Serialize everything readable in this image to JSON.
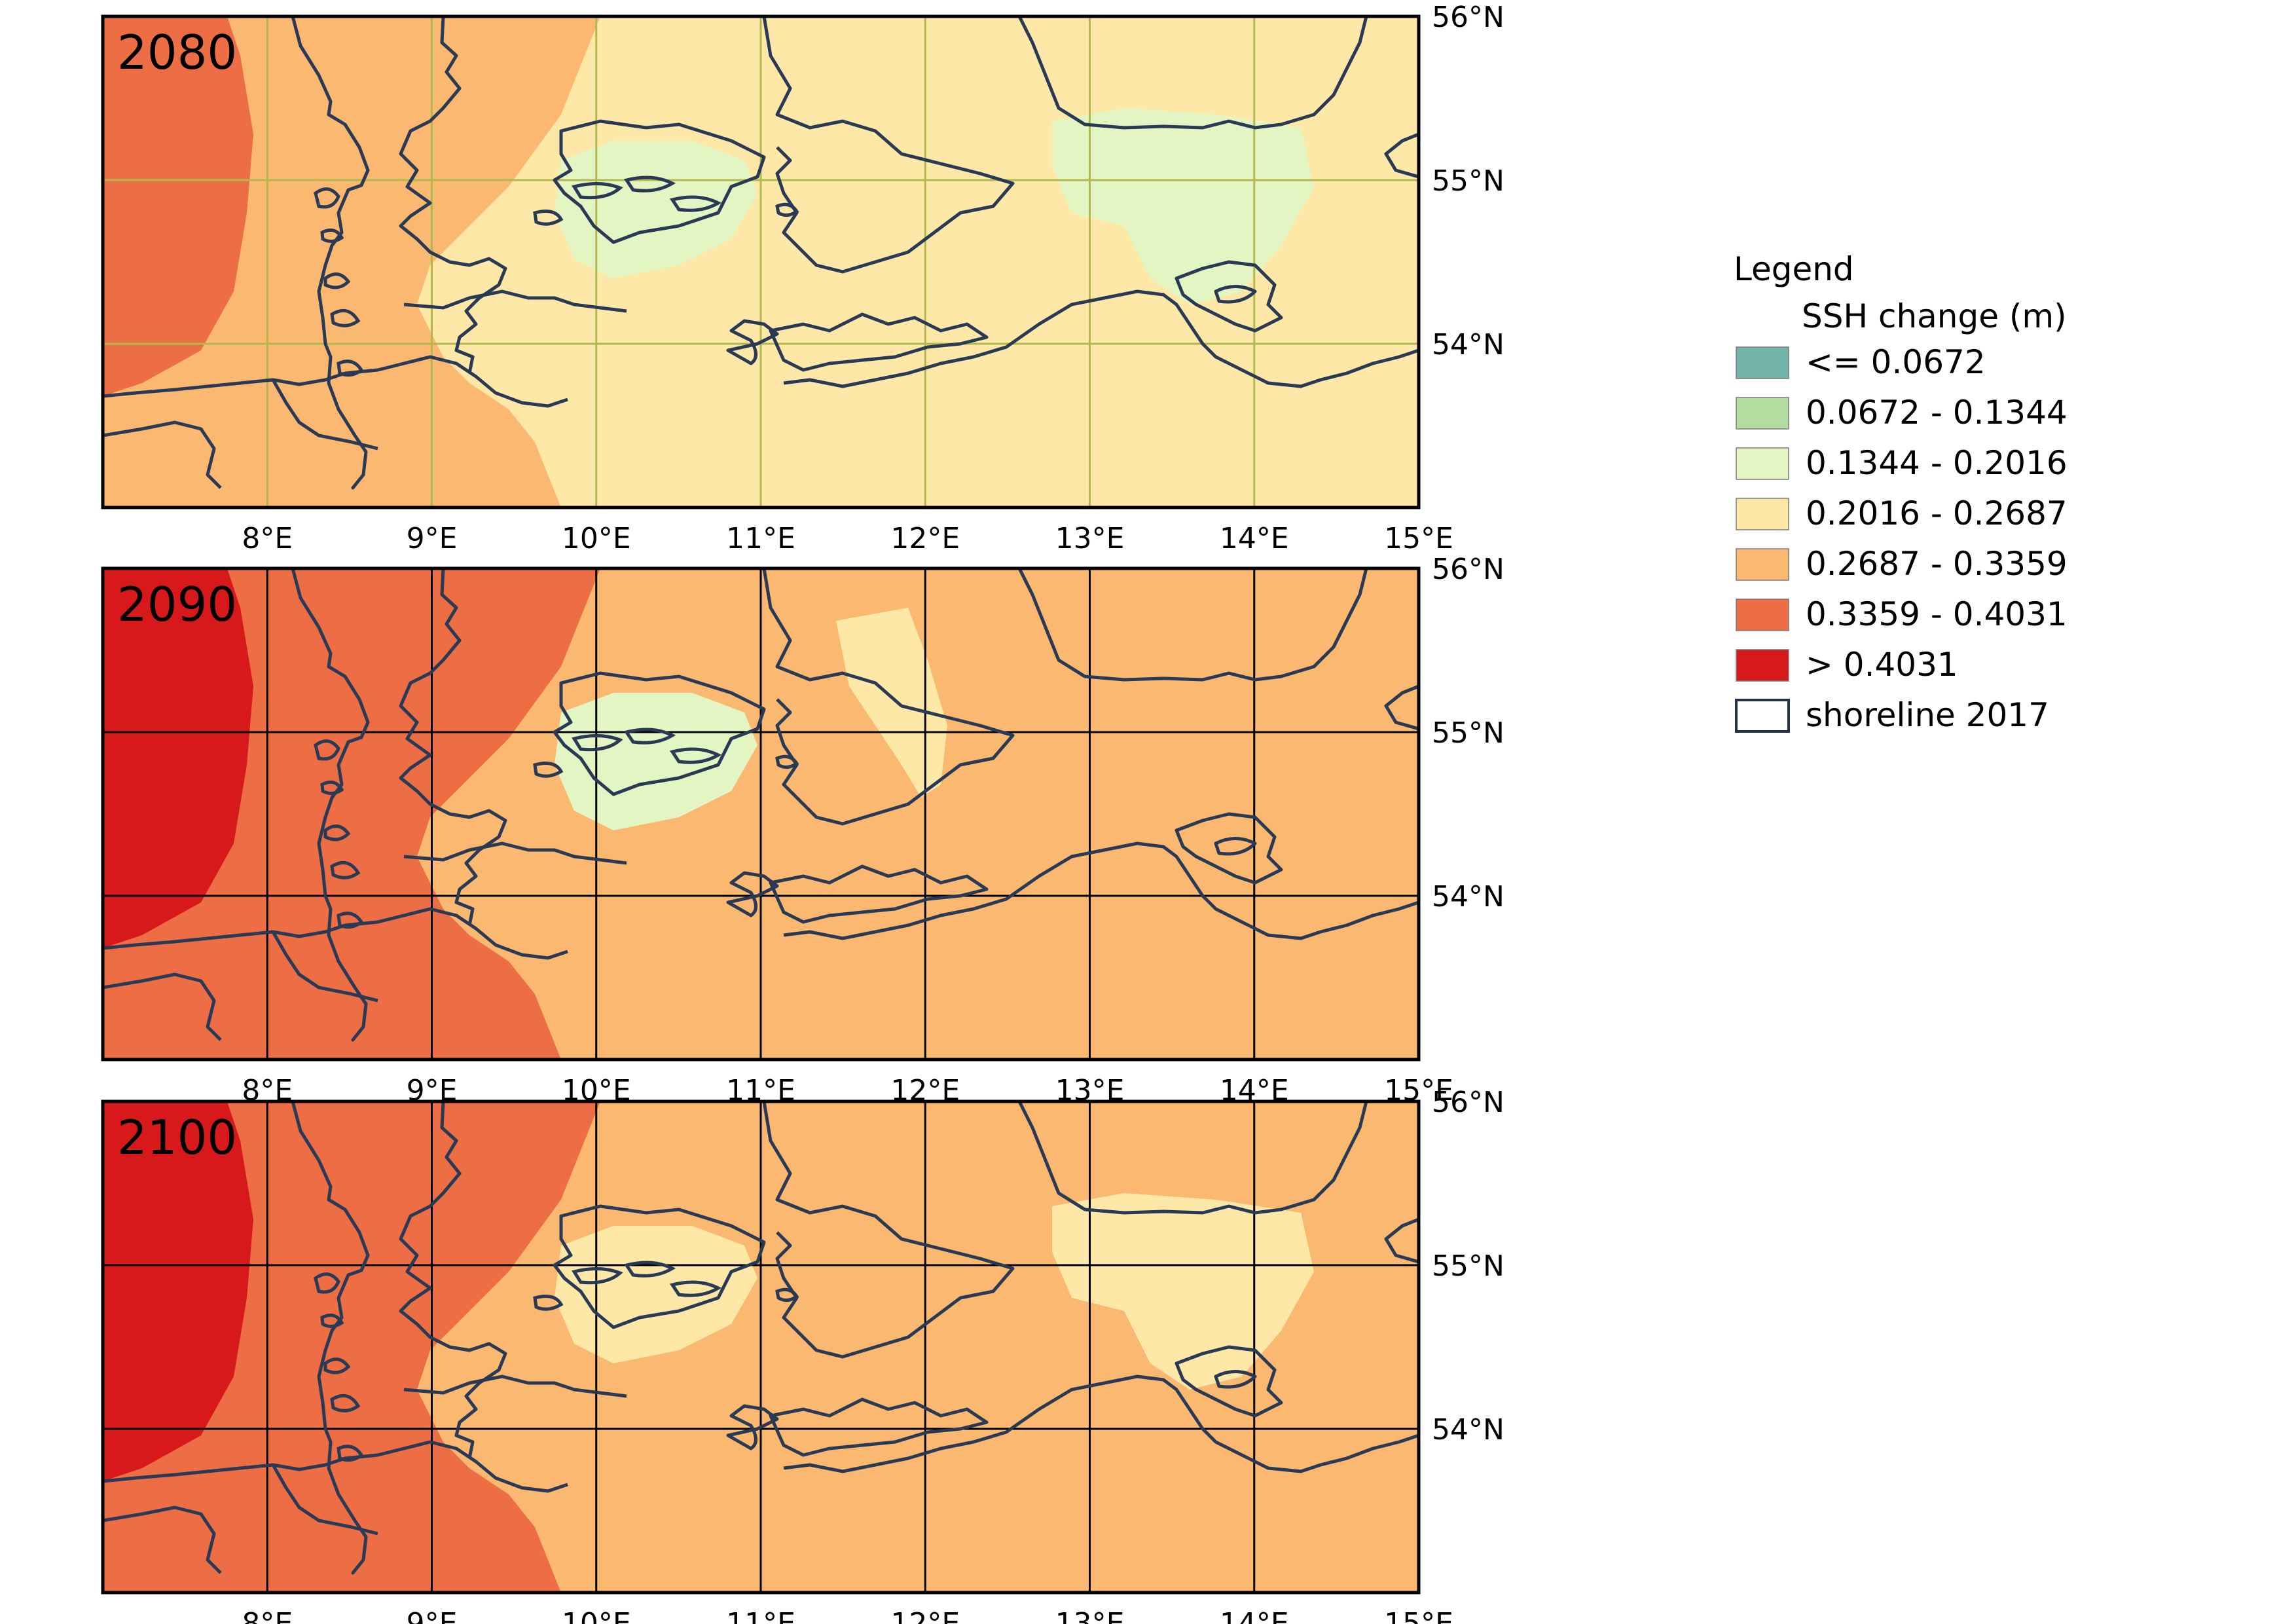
{
  "panels": [
    {
      "year_label": "2080",
      "grid_color": "#b2b84e",
      "zones": [
        {
          "name": "zone-offshore-west",
          "class": "0.3359 - 0.4031"
        },
        {
          "name": "zone-wadden",
          "class": "0.2687 - 0.3359"
        },
        {
          "name": "zone-baltic",
          "class": "0.2016 - 0.2687"
        },
        {
          "name": "zone-belt-sea",
          "class": "0.1344 - 0.2016"
        },
        {
          "name": "zone-pomeranian-bay",
          "class": "0.1344 - 0.2016"
        }
      ]
    },
    {
      "year_label": "2090",
      "grid_color": "#000000",
      "zones": [
        {
          "name": "zone-offshore-west",
          "class": "> 0.4031"
        },
        {
          "name": "zone-wadden",
          "class": "0.3359 - 0.4031"
        },
        {
          "name": "zone-baltic",
          "class": "0.2687 - 0.3359"
        },
        {
          "name": "zone-baltic-north",
          "class": "0.2016 - 0.2687"
        },
        {
          "name": "zone-belt-sea",
          "class": "0.1344 - 0.2016"
        }
      ]
    },
    {
      "year_label": "2100",
      "grid_color": "#000000",
      "zones": [
        {
          "name": "zone-offshore-west",
          "class": "> 0.4031"
        },
        {
          "name": "zone-wadden",
          "class": "0.3359 - 0.4031"
        },
        {
          "name": "zone-baltic",
          "class": "0.2687 - 0.3359"
        },
        {
          "name": "zone-belt-sea",
          "class": "0.2016 - 0.2687"
        },
        {
          "name": "zone-pomeranian-bay",
          "class": "0.2016 - 0.2687"
        }
      ]
    }
  ],
  "axes": {
    "x_ticks": [
      "8°E",
      "9°E",
      "10°E",
      "11°E",
      "12°E",
      "13°E",
      "14°E",
      "15°E"
    ],
    "y_ticks": [
      "56°N",
      "55°N",
      "54°N"
    ]
  },
  "legend": {
    "title": "Legend",
    "subtitle": "SSH change (m)",
    "items": [
      {
        "label": "<= 0.0672",
        "color": "#72b4a9"
      },
      {
        "label": "0.0672 - 0.1344",
        "color": "#b3dda1"
      },
      {
        "label": "0.1344 - 0.2016",
        "color": "#e4f5c4"
      },
      {
        "label": "0.2016 - 0.2687",
        "color": "#fde8a8"
      },
      {
        "label": "0.2687 - 0.3359",
        "color": "#fbb870"
      },
      {
        "label": "0.3359 - 0.4031",
        "color": "#ed6d45"
      },
      {
        "label": "> 0.4031",
        "color": "#d7191c"
      },
      {
        "label": "shoreline 2017",
        "color": "#ffffff",
        "outline": "#24324a"
      }
    ]
  },
  "coast_color": "#2a3a55"
}
